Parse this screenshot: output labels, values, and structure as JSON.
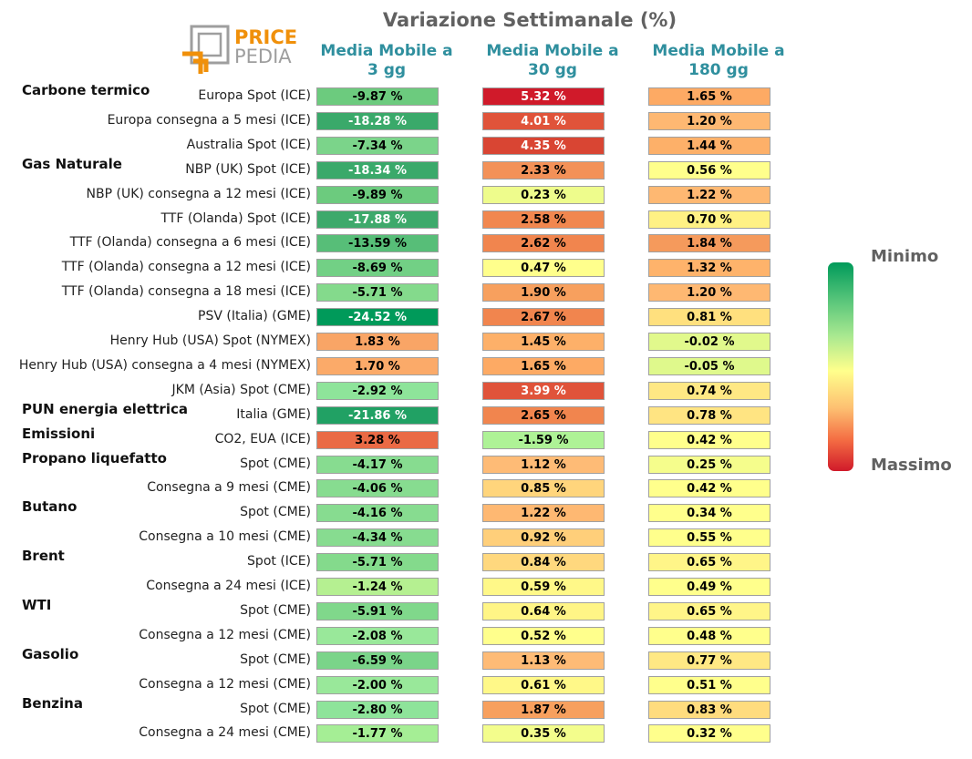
{
  "title": "Variazione Settimanale (%)",
  "logo": {
    "word1": "PRICE",
    "word2": "PEDIA"
  },
  "colorbar": {
    "top_label": "Minimo",
    "bottom_label": "Massimo"
  },
  "chart_data": {
    "type": "table",
    "columns": [
      {
        "line1": "Media Mobile a",
        "line2": "3 gg"
      },
      {
        "line1": "Media Mobile a",
        "line2": "30 gg"
      },
      {
        "line1": "Media Mobile a",
        "line2": "180 gg"
      }
    ],
    "groups": [
      {
        "name": "Carbone termico",
        "start_row": 0
      },
      {
        "name": "Gas Naturale",
        "start_row": 3
      },
      {
        "name": "PUN energia elettrica",
        "start_row": 13
      },
      {
        "name": "Emissioni",
        "start_row": 14
      },
      {
        "name": "Propano liquefatto",
        "start_row": 15
      },
      {
        "name": "Butano",
        "start_row": 17
      },
      {
        "name": "Brent",
        "start_row": 19
      },
      {
        "name": "WTI",
        "start_row": 21
      },
      {
        "name": "Gasolio",
        "start_row": 23
      },
      {
        "name": "Benzina",
        "start_row": 25
      }
    ],
    "rows": [
      {
        "label": "Europa Spot (ICE)",
        "values": [
          "-9.87 %",
          "5.32 %",
          "1.65 %"
        ],
        "colors": [
          "#6ccb7e",
          "#d01a2a",
          "#fdaa64"
        ]
      },
      {
        "label": "Europa consegna a 5 mesi (ICE)",
        "values": [
          "-18.28 %",
          "4.01 %",
          "1.20 %"
        ],
        "colors": [
          "#3aa96a",
          "#e0533a",
          "#feb872"
        ]
      },
      {
        "label": "Australia Spot (ICE)",
        "values": [
          "-7.34 %",
          "4.35 %",
          "1.44 %"
        ],
        "colors": [
          "#7bd48a",
          "#d94533",
          "#fdb069"
        ]
      },
      {
        "label": "NBP (UK) Spot (ICE)",
        "values": [
          "-18.34 %",
          "2.33 %",
          "0.56 %"
        ],
        "colors": [
          "#3aa96a",
          "#f39158",
          "#ffff8c"
        ]
      },
      {
        "label": "NBP (UK) consegna a 12 mesi (ICE)",
        "values": [
          "-9.89 %",
          "0.23 %",
          "1.22 %"
        ],
        "colors": [
          "#6ccb7e",
          "#eefc8c",
          "#feb872"
        ]
      },
      {
        "label": "TTF (Olanda) Spot (ICE)",
        "values": [
          "-17.88 %",
          "2.58 %",
          "0.70 %"
        ],
        "colors": [
          "#3ea96b",
          "#f1874f",
          "#fff184"
        ]
      },
      {
        "label": "TTF (Olanda) consegna a 6 mesi (ICE)",
        "values": [
          "-13.59 %",
          "2.62 %",
          "1.84 %"
        ],
        "colors": [
          "#57be78",
          "#f1854e",
          "#f59a5c"
        ]
      },
      {
        "label": "TTF (Olanda) consegna a 12 mesi (ICE)",
        "values": [
          "-8.69 %",
          "0.47 %",
          "1.32 %"
        ],
        "colors": [
          "#72d085",
          "#ffff8c",
          "#feb36b"
        ]
      },
      {
        "label": "TTF (Olanda) consegna a 18 mesi (ICE)",
        "values": [
          "-5.71 %",
          "1.90 %",
          "1.20 %"
        ],
        "colors": [
          "#84da8c",
          "#f7a05e",
          "#feb872"
        ]
      },
      {
        "label": "PSV (Italia) (GME)",
        "values": [
          "-24.52 %",
          "2.67 %",
          "0.81 %"
        ],
        "colors": [
          "#009a5a",
          "#f1854e",
          "#ffe07e"
        ]
      },
      {
        "label": "Henry Hub (USA) Spot (NYMEX)",
        "values": [
          "1.83 %",
          "1.45 %",
          "-0.02 %"
        ],
        "colors": [
          "#f9a566",
          "#fdb069",
          "#e1f98c"
        ]
      },
      {
        "label": "Henry Hub (USA) consegna a 4 mesi (NYMEX)",
        "values": [
          "1.70 %",
          "1.65 %",
          "-0.05 %"
        ],
        "colors": [
          "#fbaa69",
          "#fdaa64",
          "#dff98c"
        ]
      },
      {
        "label": "JKM (Asia) Spot (CME)",
        "values": [
          "-2.92 %",
          "3.99 %",
          "0.74 %"
        ],
        "colors": [
          "#8ee49a",
          "#e0533a",
          "#ffe884"
        ]
      },
      {
        "label": "Italia (GME)",
        "values": [
          "-21.86 %",
          "2.65 %",
          "0.78 %"
        ],
        "colors": [
          "#21a164",
          "#f1854e",
          "#ffe482"
        ]
      },
      {
        "label": "CO2, EUA (ICE)",
        "values": [
          "3.28 %",
          "-1.59 %",
          "0.42 %"
        ],
        "colors": [
          "#ea6a45",
          "#aef296",
          "#ffff8c"
        ]
      },
      {
        "label": "Spot (CME)",
        "values": [
          "-4.17 %",
          "1.12 %",
          "0.25 %"
        ],
        "colors": [
          "#87dc90",
          "#febb76",
          "#f5fd8c"
        ]
      },
      {
        "label": "Consegna a 9 mesi (CME)",
        "values": [
          "-4.06 %",
          "0.85 %",
          "0.42 %"
        ],
        "colors": [
          "#87dc90",
          "#ffd57c",
          "#ffff8c"
        ]
      },
      {
        "label": "Spot (CME)",
        "values": [
          "-4.16 %",
          "1.22 %",
          "0.34 %"
        ],
        "colors": [
          "#87dc90",
          "#feb872",
          "#ffff8c"
        ]
      },
      {
        "label": "Consegna a 10 mesi (CME)",
        "values": [
          "-4.34 %",
          "0.92 %",
          "0.55 %"
        ],
        "colors": [
          "#87dc90",
          "#ffcf7a",
          "#ffff8c"
        ]
      },
      {
        "label": "Spot (ICE)",
        "values": [
          "-5.71 %",
          "0.84 %",
          "0.65 %"
        ],
        "colors": [
          "#84da8c",
          "#ffd87e",
          "#fff588"
        ]
      },
      {
        "label": "Consegna a 24 mesi (ICE)",
        "values": [
          "-1.24 %",
          "0.59 %",
          "0.49 %"
        ],
        "colors": [
          "#b5f091",
          "#fff888",
          "#ffff8c"
        ]
      },
      {
        "label": "Spot (CME)",
        "values": [
          "-5.91 %",
          "0.64 %",
          "0.65 %"
        ],
        "colors": [
          "#80d88b",
          "#fff586",
          "#fff588"
        ]
      },
      {
        "label": "Consegna a 12 mesi (CME)",
        "values": [
          "-2.08 %",
          "0.52 %",
          "0.48 %"
        ],
        "colors": [
          "#99e89a",
          "#ffff8c",
          "#ffff8c"
        ]
      },
      {
        "label": "Spot (CME)",
        "values": [
          "-6.59 %",
          "1.13 %",
          "0.77 %"
        ],
        "colors": [
          "#7ad489",
          "#febb76",
          "#ffe884"
        ]
      },
      {
        "label": "Consegna a 12 mesi (CME)",
        "values": [
          "-2.00 %",
          "0.61 %",
          "0.51 %"
        ],
        "colors": [
          "#99e89a",
          "#fff888",
          "#ffff8c"
        ]
      },
      {
        "label": "Spot (CME)",
        "values": [
          "-2.80 %",
          "1.87 %",
          "0.83 %"
        ],
        "colors": [
          "#8ee49a",
          "#f7a05e",
          "#ffdc7e"
        ]
      },
      {
        "label": "Consegna a 24 mesi (CME)",
        "values": [
          "-1.77 %",
          "0.35 %",
          "0.32 %"
        ],
        "colors": [
          "#a5ee95",
          "#f3fd8c",
          "#ffff8c"
        ]
      }
    ]
  }
}
